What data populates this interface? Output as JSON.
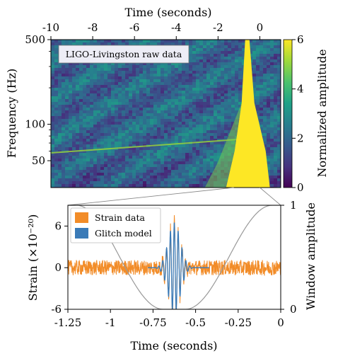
{
  "chart_data": [
    {
      "type": "heatmap",
      "xlabel": "Time (seconds)",
      "ylabel": "Frequency (Hz)",
      "x_ticks": [
        -10,
        -8,
        -6,
        -4,
        -2,
        0
      ],
      "y_ticks": [
        50,
        100,
        500
      ],
      "xlim": [
        -10,
        1.0
      ],
      "ylim": [
        30,
        500
      ],
      "y_scale": "log",
      "annotation": "LIGO-Livingston raw data",
      "colorbar": {
        "label": "Normalized amplitude",
        "range": [
          0,
          6
        ],
        "ticks": [
          0,
          2,
          4,
          6
        ],
        "colormap": "viridis"
      },
      "features": {
        "chirp_track": {
          "t_start": -10,
          "f_start": 58,
          "t_end": -1.0,
          "f_end": 75
        },
        "glitch_center_time": -0.6,
        "glitch_top_frequency": 500
      },
      "colors": {
        "low": "#440154",
        "mid": "#21918c",
        "high": "#fde725"
      }
    },
    {
      "type": "line",
      "xlabel": "Time (seconds)",
      "ylabel": "Strain (×10⁻²⁰)",
      "y2label": "Window amplitude",
      "x_ticks": [
        "-1.25",
        "-1",
        "-0.75",
        "-0.5",
        "-0.25",
        "0"
      ],
      "y_ticks": [
        "-6",
        "0",
        "6"
      ],
      "y2_ticks": [
        "0",
        "1"
      ],
      "xlim": [
        -1.25,
        0
      ],
      "ylim": [
        -6,
        9
      ],
      "y2lim": [
        0,
        1
      ],
      "legend_position": "top-left",
      "series": [
        {
          "name": "Strain data",
          "color": "#f28c28",
          "noise_amplitude": 1.0
        },
        {
          "name": "Glitch model",
          "color": "#3a7ab7",
          "center": -0.625,
          "peak": 6.5,
          "frequency_hz": 44,
          "width_s": 0.05
        },
        {
          "name": "Window",
          "color": "#999999",
          "low_start": -0.69,
          "low_end": -0.56,
          "taper_start": -1.2,
          "taper_end": -0.05
        }
      ]
    }
  ]
}
